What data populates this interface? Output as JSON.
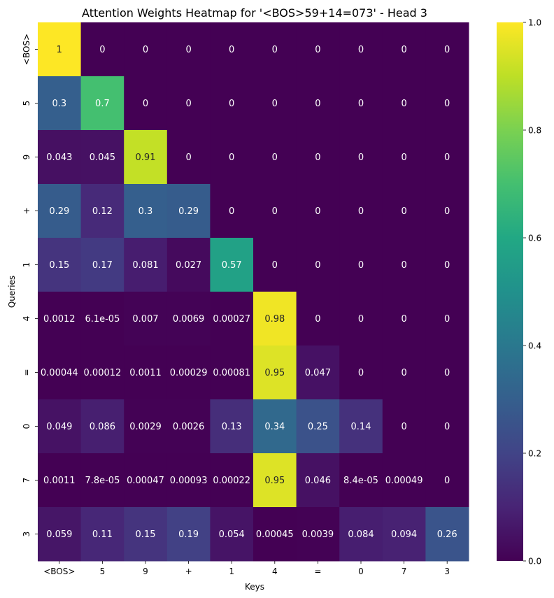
{
  "chart_data": {
    "type": "heatmap",
    "title": "Attention Weights Heatmap for '<BOS>59+14=073' - Head 3",
    "xlabel": "Keys",
    "ylabel": "Queries",
    "x_categories": [
      "<BOS>",
      "5",
      "9",
      "+",
      "1",
      "4",
      "=",
      "0",
      "7",
      "3"
    ],
    "y_categories": [
      "<BOS>",
      "5",
      "9",
      "+",
      "1",
      "4",
      "=",
      "0",
      "7",
      "3"
    ],
    "values": [
      [
        1,
        0,
        0,
        0,
        0,
        0,
        0,
        0,
        0,
        0
      ],
      [
        0.3,
        0.7,
        0,
        0,
        0,
        0,
        0,
        0,
        0,
        0
      ],
      [
        0.043,
        0.045,
        0.91,
        0,
        0,
        0,
        0,
        0,
        0,
        0
      ],
      [
        0.29,
        0.12,
        0.3,
        0.29,
        0,
        0,
        0,
        0,
        0,
        0
      ],
      [
        0.15,
        0.17,
        0.081,
        0.027,
        0.57,
        0,
        0,
        0,
        0,
        0
      ],
      [
        0.0012,
        6.1e-05,
        0.007,
        0.0069,
        0.00027,
        0.98,
        0,
        0,
        0,
        0
      ],
      [
        0.00044,
        0.00012,
        0.0011,
        0.00029,
        0.00081,
        0.95,
        0.047,
        0,
        0,
        0
      ],
      [
        0.049,
        0.086,
        0.0029,
        0.0026,
        0.13,
        0.34,
        0.25,
        0.14,
        0,
        0
      ],
      [
        0.0011,
        7.8e-05,
        0.00047,
        0.00093,
        0.00022,
        0.95,
        0.046,
        8.4e-05,
        0.00049,
        0
      ],
      [
        0.059,
        0.11,
        0.15,
        0.19,
        0.054,
        0.00045,
        0.0039,
        0.084,
        0.094,
        0.26
      ]
    ],
    "labels": [
      [
        "1",
        "0",
        "0",
        "0",
        "0",
        "0",
        "0",
        "0",
        "0",
        "0"
      ],
      [
        "0.3",
        "0.7",
        "0",
        "0",
        "0",
        "0",
        "0",
        "0",
        "0",
        "0"
      ],
      [
        "0.043",
        "0.045",
        "0.91",
        "0",
        "0",
        "0",
        "0",
        "0",
        "0",
        "0"
      ],
      [
        "0.29",
        "0.12",
        "0.3",
        "0.29",
        "0",
        "0",
        "0",
        "0",
        "0",
        "0"
      ],
      [
        "0.15",
        "0.17",
        "0.081",
        "0.027",
        "0.57",
        "0",
        "0",
        "0",
        "0",
        "0"
      ],
      [
        "0.0012",
        "6.1e-05",
        "0.007",
        "0.0069",
        "0.00027",
        "0.98",
        "0",
        "0",
        "0",
        "0"
      ],
      [
        "0.00044",
        "0.00012",
        "0.0011",
        "0.00029",
        "0.00081",
        "0.95",
        "0.047",
        "0",
        "0",
        "0"
      ],
      [
        "0.049",
        "0.086",
        "0.0029",
        "0.0026",
        "0.13",
        "0.34",
        "0.25",
        "0.14",
        "0",
        "0"
      ],
      [
        "0.0011",
        "7.8e-05",
        "0.00047",
        "0.00093",
        "0.00022",
        "0.95",
        "0.046",
        "8.4e-05",
        "0.00049",
        "0"
      ],
      [
        "0.059",
        "0.11",
        "0.15",
        "0.19",
        "0.054",
        "0.00045",
        "0.0039",
        "0.084",
        "0.094",
        "0.26"
      ]
    ],
    "colormap": "viridis",
    "vmin": 0,
    "vmax": 1,
    "colorbar_ticks": [
      "0.0",
      "0.2",
      "0.4",
      "0.6",
      "0.8",
      "1.0"
    ],
    "grid": false,
    "legend": "colorbar-right"
  }
}
